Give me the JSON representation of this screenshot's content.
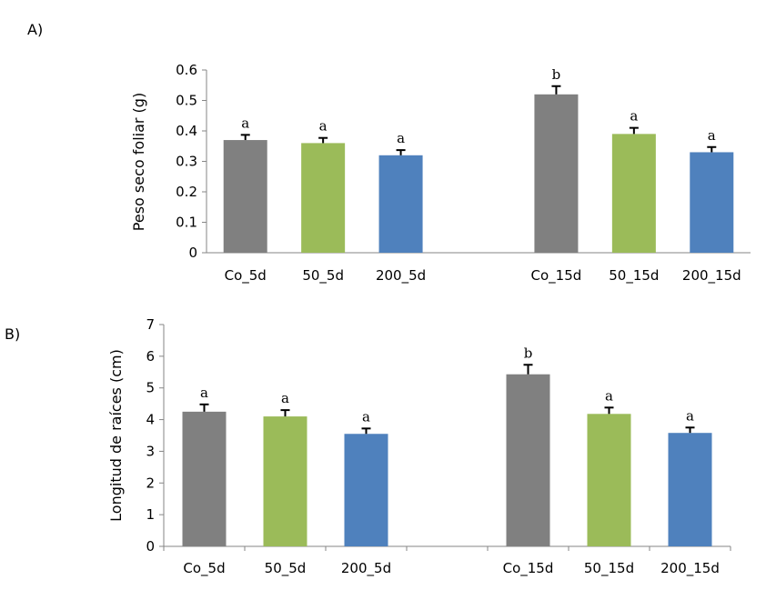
{
  "chart_data": [
    {
      "panel_label": "A)",
      "type": "bar",
      "ylabel": "Peso seco foliar (g)",
      "xlabel": "",
      "categories": [
        "Co_5d",
        "50_5d",
        "200_5d",
        "",
        "Co_15d",
        "50_15d",
        "200_15d"
      ],
      "values": [
        0.37,
        0.36,
        0.32,
        null,
        0.52,
        0.39,
        0.33
      ],
      "errors": [
        0.017,
        0.017,
        0.017,
        null,
        0.027,
        0.02,
        0.017
      ],
      "significance": [
        "a",
        "a",
        "a",
        "",
        "b",
        "a",
        "a"
      ],
      "colors": [
        "#808080",
        "#9bbb59",
        "#4f81bd",
        "",
        "#808080",
        "#9bbb59",
        "#4f81bd"
      ],
      "ylim": [
        0,
        0.6
      ],
      "yticks": [
        "0",
        "0.1",
        "0.2",
        "0.3",
        "0.4",
        "0.5",
        "0.6"
      ],
      "grid": false,
      "category_ticks": false
    },
    {
      "panel_label": "B)",
      "type": "bar",
      "ylabel": "Longitud de raíces (cm)",
      "xlabel": "",
      "categories": [
        "Co_5d",
        "50_5d",
        "200_5d",
        "",
        "Co_15d",
        "50_15d",
        "200_15d"
      ],
      "values": [
        4.25,
        4.1,
        3.55,
        null,
        5.43,
        4.18,
        3.58
      ],
      "errors": [
        0.23,
        0.2,
        0.17,
        null,
        0.3,
        0.2,
        0.17
      ],
      "significance": [
        "a",
        "a",
        "a",
        "",
        "b",
        "a",
        "a"
      ],
      "colors": [
        "#808080",
        "#9bbb59",
        "#4f81bd",
        "",
        "#808080",
        "#9bbb59",
        "#4f81bd"
      ],
      "ylim": [
        0,
        7
      ],
      "yticks": [
        "0",
        "1",
        "2",
        "3",
        "4",
        "5",
        "6",
        "7"
      ],
      "grid": false,
      "category_ticks": true
    }
  ]
}
